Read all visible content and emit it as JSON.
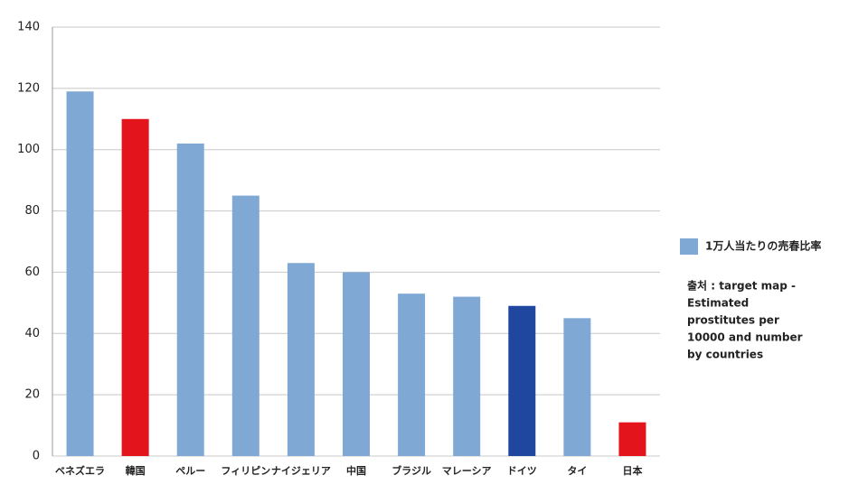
{
  "chart_data": {
    "type": "bar",
    "categories": [
      "ベネズエラ",
      "韓国",
      "ペルー",
      "フィリピン",
      "ナイジェリア",
      "中国",
      "ブラジル",
      "マレーシア",
      "ドイツ",
      "タイ",
      "日本"
    ],
    "series": [
      {
        "name": "1万人当たりの売春比率",
        "color": "#80a8d4",
        "values": [
          119,
          110,
          102,
          85,
          63,
          60,
          53,
          52,
          49,
          45,
          11
        ]
      }
    ],
    "bar_colors": [
      "#80a8d4",
      "#e3141b",
      "#80a8d4",
      "#80a8d4",
      "#80a8d4",
      "#80a8d4",
      "#80a8d4",
      "#80a8d4",
      "#1f47a0",
      "#80a8d4",
      "#e3141b"
    ],
    "ylim": [
      0,
      140
    ],
    "yticks": [
      0,
      20,
      40,
      60,
      80,
      100,
      120,
      140
    ],
    "grid": true,
    "legend": "right",
    "annotation": [
      "출처 : target map -",
      "Estimated",
      "prostitutes per",
      "10000 and number",
      "by countries"
    ]
  }
}
